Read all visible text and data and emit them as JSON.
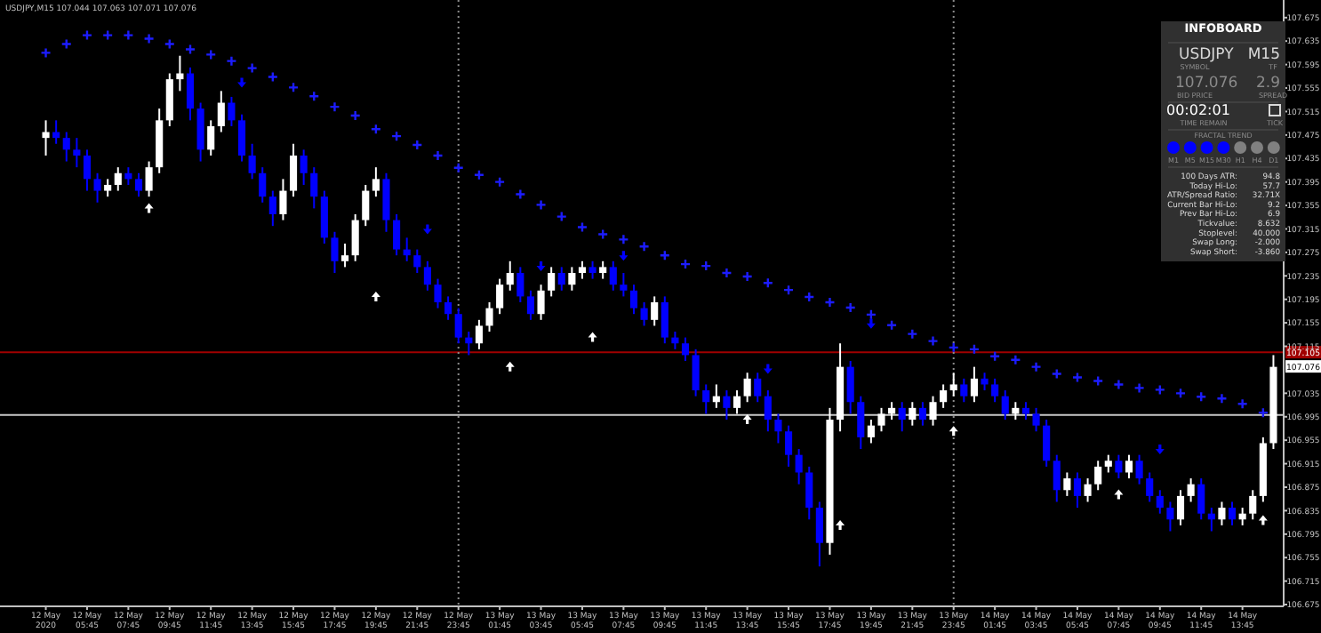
{
  "chart_data": [
    {
      "type": "candlestick",
      "title": "USDJPY,M15  107.044 107.063 107.071 107.076",
      "categories": [
        "12 May 2020",
        null,
        null,
        null,
        "12 May 05:45",
        null,
        null,
        null,
        "12 May 07:45",
        null,
        null,
        null,
        "12 May 09:45",
        null,
        null,
        null,
        "12 May 11:45",
        null,
        null,
        null,
        "12 May 13:45",
        null,
        null,
        null,
        "12 May 15:45",
        null,
        null,
        null,
        "12 May 17:45",
        null,
        null,
        null,
        "12 May 19:45",
        null,
        null,
        null,
        "12 May 21:45",
        null,
        null,
        null,
        "12 May 23:45",
        null,
        null,
        null,
        "13 May 01:45",
        null,
        null,
        null,
        "13 May 03:45",
        null,
        null,
        null,
        "13 May 05:45",
        null,
        null,
        null,
        "13 May 07:45",
        null,
        null,
        null,
        "13 May 09:45",
        null,
        null,
        null,
        "13 May 11:45",
        null,
        null,
        null,
        "13 May 13:45",
        null,
        null,
        null,
        "13 May 15:45",
        null,
        null,
        null,
        "13 May 17:45",
        null,
        null,
        null,
        "13 May 19:45",
        null,
        null,
        null,
        "13 May 21:45",
        null,
        null,
        null,
        "13 May 23:45",
        null,
        null,
        null,
        "14 May 01:45",
        null,
        null,
        null,
        "14 May 03:45",
        null,
        null,
        null,
        "14 May 05:45",
        null,
        null,
        null,
        "14 May 07:45",
        null,
        null,
        null,
        "14 May 09:45",
        null,
        null,
        null,
        "14 May 11:45",
        null,
        null,
        null,
        "14 May 13:45",
        null,
        null,
        null
      ],
      "colors": [
        "#ffffff",
        "#0000ff",
        "#0000ff",
        "#0000ff",
        "#0000ff",
        "#0000ff",
        "#ffffff",
        "#ffffff",
        "#0000ff",
        "#0000ff",
        "#ffffff",
        "#ffffff",
        "#ffffff",
        "#ffffff",
        "#0000ff",
        "#0000ff",
        "#ffffff",
        "#ffffff",
        "#0000ff",
        "#0000ff",
        "#0000ff",
        "#0000ff",
        "#0000ff",
        "#ffffff",
        "#ffffff",
        "#0000ff",
        "#0000ff",
        "#0000ff",
        "#0000ff",
        "#ffffff",
        "#ffffff",
        "#ffffff",
        "#ffffff",
        "#0000ff",
        "#0000ff",
        "#0000ff",
        "#0000ff",
        "#0000ff",
        "#0000ff",
        "#0000ff",
        "#0000ff",
        "#0000ff",
        "#ffffff",
        "#ffffff",
        "#ffffff",
        "#ffffff",
        "#0000ff",
        "#0000ff",
        "#ffffff",
        "#ffffff",
        "#0000ff",
        "#ffffff",
        "#ffffff",
        "#0000ff",
        "#ffffff",
        "#0000ff",
        "#0000ff",
        "#0000ff",
        "#0000ff",
        "#ffffff",
        "#0000ff",
        "#0000ff",
        "#0000ff",
        "#0000ff",
        "#0000ff",
        "#ffffff",
        "#0000ff",
        "#ffffff",
        "#ffffff",
        "#0000ff",
        "#0000ff",
        "#0000ff",
        "#0000ff",
        "#0000ff",
        "#0000ff",
        "#0000ff",
        "#ffffff",
        "#ffffff",
        "#0000ff",
        "#0000ff",
        "#ffffff",
        "#ffffff",
        "#ffffff",
        "#0000ff",
        "#ffffff",
        "#0000ff",
        "#ffffff",
        "#ffffff",
        "#ffffff",
        "#0000ff",
        "#ffffff",
        "#0000ff",
        "#0000ff",
        "#0000ff",
        "#ffffff",
        "#0000ff",
        "#0000ff",
        "#0000ff",
        "#0000ff",
        "#ffffff",
        "#0000ff",
        "#ffffff",
        "#ffffff",
        "#ffffff",
        "#0000ff",
        "#ffffff",
        "#0000ff",
        "#0000ff",
        "#0000ff",
        "#0000ff",
        "#ffffff",
        "#ffffff",
        "#0000ff",
        "#0000ff",
        "#ffffff",
        "#0000ff",
        "#ffffff",
        "#ffffff",
        "#ffffff",
        "#ffffff"
      ],
      "ohlc": [
        [
          107.47,
          107.5,
          107.44,
          107.48
        ],
        [
          107.48,
          107.5,
          107.46,
          107.47
        ],
        [
          107.47,
          107.48,
          107.43,
          107.45
        ],
        [
          107.45,
          107.47,
          107.42,
          107.44
        ],
        [
          107.44,
          107.45,
          107.38,
          107.4
        ],
        [
          107.4,
          107.41,
          107.36,
          107.38
        ],
        [
          107.38,
          107.4,
          107.37,
          107.39
        ],
        [
          107.39,
          107.42,
          107.38,
          107.41
        ],
        [
          107.41,
          107.42,
          107.39,
          107.4
        ],
        [
          107.4,
          107.41,
          107.37,
          107.38
        ],
        [
          107.38,
          107.43,
          107.37,
          107.42
        ],
        [
          107.42,
          107.52,
          107.41,
          107.5
        ],
        [
          107.5,
          107.58,
          107.49,
          107.57
        ],
        [
          107.57,
          107.61,
          107.55,
          107.58
        ],
        [
          107.58,
          107.59,
          107.5,
          107.52
        ],
        [
          107.52,
          107.53,
          107.43,
          107.45
        ],
        [
          107.45,
          107.5,
          107.44,
          107.49
        ],
        [
          107.49,
          107.55,
          107.48,
          107.53
        ],
        [
          107.53,
          107.54,
          107.49,
          107.5
        ],
        [
          107.5,
          107.51,
          107.43,
          107.44
        ],
        [
          107.44,
          107.46,
          107.4,
          107.41
        ],
        [
          107.41,
          107.42,
          107.36,
          107.37
        ],
        [
          107.37,
          107.38,
          107.32,
          107.34
        ],
        [
          107.34,
          107.4,
          107.33,
          107.38
        ],
        [
          107.38,
          107.46,
          107.37,
          107.44
        ],
        [
          107.44,
          107.45,
          107.39,
          107.41
        ],
        [
          107.41,
          107.42,
          107.35,
          107.37
        ],
        [
          107.37,
          107.38,
          107.29,
          107.3
        ],
        [
          107.3,
          107.31,
          107.24,
          107.26
        ],
        [
          107.26,
          107.29,
          107.25,
          107.27
        ],
        [
          107.27,
          107.34,
          107.26,
          107.33
        ],
        [
          107.33,
          107.39,
          107.32,
          107.38
        ],
        [
          107.38,
          107.42,
          107.37,
          107.4
        ],
        [
          107.4,
          107.41,
          107.31,
          107.33
        ],
        [
          107.33,
          107.34,
          107.27,
          107.28
        ],
        [
          107.28,
          107.3,
          107.26,
          107.27
        ],
        [
          107.27,
          107.28,
          107.24,
          107.25
        ],
        [
          107.25,
          107.26,
          107.21,
          107.22
        ],
        [
          107.22,
          107.23,
          107.18,
          107.19
        ],
        [
          107.19,
          107.2,
          107.16,
          107.17
        ],
        [
          107.17,
          107.18,
          107.12,
          107.13
        ],
        [
          107.13,
          107.14,
          107.1,
          107.12
        ],
        [
          107.12,
          107.16,
          107.11,
          107.15
        ],
        [
          107.15,
          107.19,
          107.14,
          107.18
        ],
        [
          107.18,
          107.23,
          107.17,
          107.22
        ],
        [
          107.22,
          107.26,
          107.21,
          107.24
        ],
        [
          107.24,
          107.25,
          107.19,
          107.2
        ],
        [
          107.2,
          107.21,
          107.16,
          107.17
        ],
        [
          107.17,
          107.22,
          107.16,
          107.21
        ],
        [
          107.21,
          107.25,
          107.2,
          107.24
        ],
        [
          107.24,
          107.25,
          107.21,
          107.22
        ],
        [
          107.22,
          107.25,
          107.21,
          107.24
        ],
        [
          107.24,
          107.26,
          107.23,
          107.25
        ],
        [
          107.25,
          107.26,
          107.23,
          107.24
        ],
        [
          107.24,
          107.26,
          107.23,
          107.25
        ],
        [
          107.25,
          107.26,
          107.21,
          107.22
        ],
        [
          107.22,
          107.24,
          107.2,
          107.21
        ],
        [
          107.21,
          107.22,
          107.17,
          107.18
        ],
        [
          107.18,
          107.19,
          107.15,
          107.16
        ],
        [
          107.16,
          107.2,
          107.15,
          107.19
        ],
        [
          107.19,
          107.2,
          107.12,
          107.13
        ],
        [
          107.13,
          107.14,
          107.11,
          107.12
        ],
        [
          107.12,
          107.13,
          107.09,
          107.1
        ],
        [
          107.1,
          107.11,
          107.03,
          107.04
        ],
        [
          107.04,
          107.05,
          107.0,
          107.02
        ],
        [
          107.02,
          107.05,
          107.01,
          107.03
        ],
        [
          107.03,
          107.04,
          106.99,
          107.01
        ],
        [
          107.01,
          107.04,
          107.0,
          107.03
        ],
        [
          107.03,
          107.07,
          107.02,
          107.06
        ],
        [
          107.06,
          107.07,
          107.02,
          107.03
        ],
        [
          107.03,
          107.04,
          106.97,
          106.99
        ],
        [
          106.99,
          107.0,
          106.95,
          106.97
        ],
        [
          106.97,
          106.98,
          106.91,
          106.93
        ],
        [
          106.93,
          106.94,
          106.88,
          106.9
        ],
        [
          106.9,
          106.91,
          106.82,
          106.84
        ],
        [
          106.84,
          106.85,
          106.74,
          106.78
        ],
        [
          106.78,
          107.01,
          106.76,
          106.99
        ],
        [
          106.99,
          107.12,
          106.97,
          107.08
        ],
        [
          107.08,
          107.09,
          107.0,
          107.02
        ],
        [
          107.02,
          107.03,
          106.94,
          106.96
        ],
        [
          106.96,
          106.99,
          106.95,
          106.98
        ],
        [
          106.98,
          107.01,
          106.97,
          107.0
        ],
        [
          107.0,
          107.02,
          106.99,
          107.01
        ],
        [
          107.01,
          107.02,
          106.97,
          106.99
        ],
        [
          106.99,
          107.02,
          106.98,
          107.01
        ],
        [
          107.01,
          107.02,
          106.98,
          106.99
        ],
        [
          106.99,
          107.03,
          106.98,
          107.02
        ],
        [
          107.02,
          107.05,
          107.01,
          107.04
        ],
        [
          107.04,
          107.07,
          107.03,
          107.05
        ],
        [
          107.05,
          107.06,
          107.02,
          107.03
        ],
        [
          107.03,
          107.08,
          107.02,
          107.06
        ],
        [
          107.06,
          107.07,
          107.04,
          107.05
        ],
        [
          107.05,
          107.06,
          107.02,
          107.03
        ],
        [
          107.03,
          107.04,
          106.99,
          107.0
        ],
        [
          107.0,
          107.02,
          106.99,
          107.01
        ],
        [
          107.01,
          107.02,
          106.99,
          107.0
        ],
        [
          107.0,
          107.01,
          106.97,
          106.98
        ],
        [
          106.98,
          106.99,
          106.91,
          106.92
        ],
        [
          106.92,
          106.93,
          106.85,
          106.87
        ],
        [
          106.87,
          106.9,
          106.86,
          106.89
        ],
        [
          106.89,
          106.9,
          106.84,
          106.86
        ],
        [
          106.86,
          106.89,
          106.85,
          106.88
        ],
        [
          106.88,
          106.92,
          106.87,
          106.91
        ],
        [
          106.91,
          106.93,
          106.9,
          106.92
        ],
        [
          106.92,
          106.93,
          106.89,
          106.9
        ],
        [
          106.9,
          106.93,
          106.89,
          106.92
        ],
        [
          106.92,
          106.93,
          106.88,
          106.89
        ],
        [
          106.89,
          106.9,
          106.85,
          106.86
        ],
        [
          106.86,
          106.87,
          106.83,
          106.84
        ],
        [
          106.84,
          106.85,
          106.8,
          106.82
        ],
        [
          106.82,
          106.87,
          106.81,
          106.86
        ],
        [
          106.86,
          106.89,
          106.85,
          106.88
        ],
        [
          106.88,
          106.89,
          106.82,
          106.83
        ],
        [
          106.83,
          106.84,
          106.8,
          106.82
        ],
        [
          106.82,
          106.85,
          106.81,
          106.84
        ],
        [
          106.84,
          106.85,
          106.81,
          106.82
        ],
        [
          106.82,
          106.84,
          106.81,
          106.83
        ],
        [
          106.83,
          106.87,
          106.82,
          106.86
        ],
        [
          106.86,
          106.96,
          106.85,
          106.95
        ],
        [
          106.95,
          107.1,
          106.94,
          107.08
        ]
      ],
      "series": [
        {
          "type": "scatter",
          "marker": "cross",
          "color": "#1c1cff",
          "values": [
            107.615,
            null,
            107.63,
            null,
            107.645,
            null,
            107.645,
            null,
            107.645,
            null,
            107.639,
            null,
            107.63,
            null,
            107.621,
            null,
            107.612,
            null,
            107.601,
            null,
            107.589,
            null,
            107.574,
            null,
            107.556,
            null,
            107.541,
            null,
            107.523,
            null,
            107.508,
            null,
            107.485,
            null,
            107.473,
            null,
            107.458,
            null,
            107.44,
            null,
            107.419,
            null,
            107.407,
            null,
            107.395,
            null,
            107.374,
            null,
            107.356,
            null,
            107.336,
            null,
            107.318,
            null,
            107.306,
            null,
            107.297,
            null,
            107.285,
            null,
            107.27,
            null,
            107.255,
            null,
            107.252,
            null,
            107.24,
            null,
            107.234,
            null,
            107.223,
            null,
            107.211,
            null,
            107.199,
            null,
            107.19,
            null,
            107.181,
            null,
            107.169,
            null,
            107.151,
            null,
            107.136,
            null,
            107.124,
            null,
            107.113,
            null,
            107.11,
            null,
            107.098,
            null,
            107.092,
            null,
            107.08,
            null,
            107.068,
            null,
            107.062,
            null,
            107.056,
            null,
            107.05,
            null,
            107.044,
            null,
            107.041,
            null,
            107.035,
            null,
            107.029,
            null,
            107.026,
            null,
            107.017,
            null,
            107.002,
            null
          ]
        },
        {
          "type": "scatter",
          "marker": "triangle",
          "color": "#ffffff",
          "values": [
            null,
            null,
            null,
            null,
            null,
            null,
            null,
            null,
            null,
            null,
            107.35,
            null,
            null,
            null,
            null,
            null,
            null,
            null,
            null,
            null,
            null,
            null,
            null,
            null,
            null,
            null,
            null,
            null,
            null,
            null,
            null,
            null,
            107.199,
            null,
            null,
            null,
            null,
            null,
            null,
            null,
            null,
            null,
            null,
            null,
            null,
            107.08,
            null,
            null,
            null,
            null,
            null,
            null,
            null,
            107.13,
            null,
            null,
            null,
            null,
            null,
            null,
            null,
            null,
            null,
            null,
            null,
            null,
            null,
            null,
            106.99,
            null,
            null,
            null,
            null,
            null,
            null,
            null,
            null,
            106.81,
            null,
            null,
            null,
            null,
            null,
            null,
            null,
            null,
            null,
            null,
            106.97,
            null,
            null,
            null,
            null,
            null,
            null,
            null,
            null,
            null,
            null,
            null,
            null,
            null,
            null,
            null,
            106.862,
            null,
            null,
            null,
            null,
            null,
            null,
            null,
            null,
            null,
            null,
            null,
            null,
            null,
            106.818,
            null
          ]
        },
        {
          "type": "scatter",
          "marker": "triangle",
          "color": "#0000ff",
          "values": [
            null,
            null,
            null,
            null,
            null,
            null,
            null,
            null,
            null,
            null,
            null,
            null,
            null,
            null,
            null,
            null,
            null,
            null,
            null,
            107.565,
            null,
            null,
            null,
            null,
            null,
            null,
            null,
            null,
            null,
            null,
            null,
            null,
            null,
            null,
            null,
            null,
            null,
            107.315,
            null,
            null,
            null,
            null,
            null,
            null,
            null,
            null,
            null,
            null,
            107.252,
            null,
            null,
            null,
            null,
            null,
            null,
            null,
            107.27,
            null,
            null,
            null,
            null,
            null,
            null,
            null,
            null,
            null,
            null,
            null,
            null,
            null,
            107.077,
            null,
            null,
            null,
            null,
            null,
            null,
            null,
            null,
            null,
            107.154,
            null,
            null,
            null,
            null,
            null,
            null,
            null,
            null,
            null,
            null,
            null,
            null,
            null,
            null,
            null,
            null,
            null,
            null,
            null,
            null,
            null,
            null,
            null,
            null,
            null,
            null,
            null,
            106.94,
            null,
            null,
            null,
            null,
            null,
            null,
            null,
            null,
            null,
            null,
            null
          ]
        }
      ],
      "ylim": [
        106.672,
        107.705
      ],
      "yticks": [
        106.675,
        106.715,
        106.755,
        106.795,
        106.835,
        106.875,
        106.915,
        106.955,
        106.995,
        107.035,
        107.115,
        107.155,
        107.195,
        107.235,
        107.275,
        107.315,
        107.355,
        107.395,
        107.435,
        107.475,
        107.515,
        107.555,
        107.595,
        107.635,
        107.675
      ],
      "ref_lines": [
        {
          "axis": "y",
          "value": 107.105,
          "label": "107.105",
          "color": "#a00000"
        },
        {
          "axis": "y",
          "value": 106.998,
          "label": null,
          "color": "#c8c8c8"
        },
        {
          "axis": "x",
          "value": "12 May 23:45",
          "label": null,
          "color": "#8a8a8a",
          "line_style": "dotted"
        },
        {
          "axis": "x",
          "value": "13 May 23:45",
          "label": null,
          "color": "#8a8a8a",
          "line_style": "dotted"
        }
      ],
      "annotations": [
        "107.076"
      ]
    },
    {
      "type": "other",
      "title": "INFOBOARD",
      "colors": [
        "#0000ff",
        "#0000ff",
        "#0000ff",
        "#0000ff",
        "#808080",
        "#808080",
        "#808080"
      ],
      "annotations": [
        "USDJPY",
        "M15",
        "SYMBOL",
        "TF",
        "107.076",
        "2.9",
        "BID PRICE",
        "SPREAD",
        "00:02:01",
        "TIME REMAIN",
        "TICK",
        "FRACTAL TREND",
        "M1",
        "M5",
        "M15",
        "M30",
        "H1",
        "H4",
        "D1",
        "100 Days ATR:",
        "94.8",
        "Today Hi-Lo:",
        "57.7",
        "ATR/Spread Ratio:",
        "32.71X",
        "Current Bar Hi-Lo:",
        "9.2",
        "Prev Bar Hi-Lo:",
        "6.9",
        "Tickvalue:",
        "8.632",
        "Stoplevel:",
        "40.000",
        "Swap Long:",
        "-2.000",
        "Swap Short:",
        "-3.860"
      ]
    }
  ]
}
